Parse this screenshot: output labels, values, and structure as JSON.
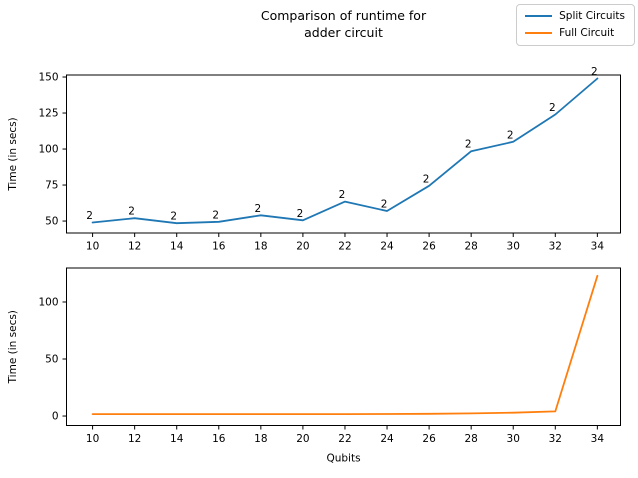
{
  "figure": {
    "title": "Comparison of runtime for\nadder circuit",
    "background": "#ffffff"
  },
  "legend": {
    "position": "upper-right",
    "items": [
      {
        "label": "Split Circuits",
        "color": "#1f77b4"
      },
      {
        "label": "Full Circuit",
        "color": "#ff7f0e"
      }
    ]
  },
  "chart_data": [
    {
      "type": "line",
      "subplot": "top",
      "title": "Comparison of runtime for\nadder circuit",
      "xlabel": "",
      "ylabel": "Time (in secs)",
      "x": [
        10,
        12,
        14,
        16,
        18,
        20,
        22,
        24,
        26,
        28,
        30,
        32,
        34
      ],
      "series": [
        {
          "name": "Split Circuits",
          "color": "#1f77b4",
          "values": [
            49,
            52,
            48.5,
            49.5,
            54,
            50.5,
            63.5,
            57,
            74.5,
            98.5,
            105,
            124,
            149
          ]
        }
      ],
      "point_labels": [
        "2",
        "2",
        "2",
        "2",
        "2",
        "2",
        "2",
        "2",
        "2",
        "2",
        "2",
        "2",
        "2"
      ],
      "xticks": [
        10,
        12,
        14,
        16,
        18,
        20,
        22,
        24,
        26,
        28,
        30,
        32,
        34
      ],
      "yticks": [
        50,
        75,
        100,
        125,
        150
      ],
      "xlim": [
        8.76,
        35.1
      ],
      "ylim": [
        41.7,
        151.4
      ],
      "grid": false
    },
    {
      "type": "line",
      "subplot": "bottom",
      "title": "",
      "xlabel": "Qubits",
      "ylabel": "Time (in secs)",
      "x": [
        10,
        12,
        14,
        16,
        18,
        20,
        22,
        24,
        26,
        28,
        30,
        32,
        34
      ],
      "series": [
        {
          "name": "Full Circuit",
          "color": "#ff7f0e",
          "values": [
            1.7,
            1.7,
            1.7,
            1.7,
            1.7,
            1.7,
            1.7,
            1.8,
            2.0,
            2.3,
            2.9,
            4.1,
            123
          ]
        }
      ],
      "point_labels": [],
      "xticks": [
        10,
        12,
        14,
        16,
        18,
        20,
        22,
        24,
        26,
        28,
        30,
        32,
        34
      ],
      "yticks": [
        0,
        50,
        100
      ],
      "xlim": [
        8.76,
        35.1
      ],
      "ylim": [
        -8.3,
        129.8
      ],
      "grid": false
    }
  ]
}
